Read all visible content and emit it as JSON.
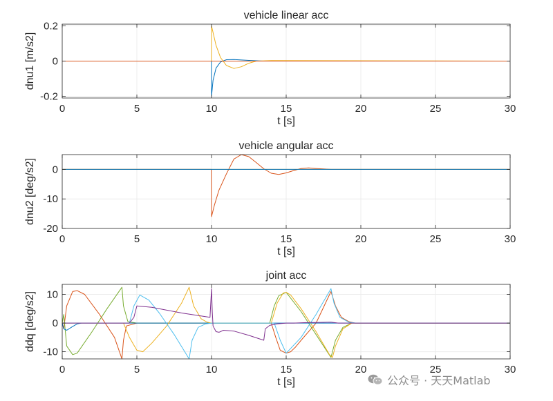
{
  "watermark": {
    "text": "公众号 · 天天Matlab",
    "icon": "wechat-icon"
  },
  "colors": [
    "#0072BD",
    "#D95319",
    "#EDB120",
    "#7E2F8E",
    "#77AC30",
    "#4DBEEE"
  ],
  "chart_data": [
    {
      "type": "line",
      "title": "vehicle linear acc",
      "xlabel": "t [s]",
      "ylabel": "dnu1 [m/s2]",
      "xlim": [
        0,
        30
      ],
      "ylim": [
        -0.21,
        0.21
      ],
      "xticks": [
        0,
        5,
        10,
        15,
        20,
        25,
        30
      ],
      "yticks": [
        -0.2,
        0,
        0.2
      ],
      "yticklabels": [
        "-0.2",
        "0",
        "0.2"
      ],
      "grid": true,
      "series": [
        {
          "color": "#0072BD",
          "x": [
            0,
            9.99,
            10.0,
            10.1,
            10.3,
            10.6,
            11.0,
            11.5,
            12.5,
            13.5,
            30
          ],
          "y": [
            0,
            0,
            -0.2,
            -0.11,
            -0.04,
            -0.005,
            0.008,
            0.009,
            0.004,
            0.0,
            0
          ]
        },
        {
          "color": "#EDB120",
          "x": [
            0,
            9.99,
            10.0,
            10.3,
            10.6,
            11.0,
            11.5,
            12.0,
            12.5,
            13.0,
            14.0,
            30
          ],
          "y": [
            0,
            0,
            0.2,
            0.09,
            0.02,
            -0.025,
            -0.042,
            -0.032,
            -0.012,
            0.0,
            0.003,
            0
          ]
        },
        {
          "color": "#D95319",
          "x": [
            0,
            30
          ],
          "y": [
            0,
            0
          ]
        }
      ]
    },
    {
      "type": "line",
      "title": "vehicle angular acc",
      "xlabel": "t [s]",
      "ylabel": "dnu2 [deg/s2]",
      "xlim": [
        0,
        30
      ],
      "ylim": [
        -20,
        5
      ],
      "xticks": [
        0,
        5,
        10,
        15,
        20,
        25,
        30
      ],
      "yticks": [
        -20,
        -10,
        0
      ],
      "yticklabels": [
        "-20",
        "-10",
        "0"
      ],
      "grid": true,
      "series": [
        {
          "color": "#D95319",
          "x": [
            0,
            9.98,
            10.0,
            10.2,
            10.5,
            11.0,
            11.5,
            12.0,
            12.5,
            13.0,
            13.5,
            14.0,
            14.5,
            15.0,
            15.5,
            16.0,
            16.5,
            17.0,
            18.0,
            20.0,
            30
          ],
          "y": [
            0,
            0,
            -16,
            -12,
            -7,
            -1.5,
            3.5,
            5,
            4.3,
            2.3,
            0.2,
            -1.3,
            -1.7,
            -1.2,
            -0.4,
            0.3,
            0.5,
            0.3,
            0.0,
            0,
            0
          ]
        },
        {
          "color": "#EDB120",
          "x": [
            0,
            30
          ],
          "y": [
            0,
            0
          ]
        },
        {
          "color": "#0072BD",
          "x": [
            0,
            30
          ],
          "y": [
            0,
            0
          ]
        }
      ]
    },
    {
      "type": "line",
      "title": "joint acc",
      "xlabel": "t [s]",
      "ylabel": "ddq [deg/s2]",
      "xlim": [
        0,
        30
      ],
      "ylim": [
        -12.5,
        13.5
      ],
      "xticks": [
        0,
        5,
        10,
        15,
        20,
        25,
        30
      ],
      "yticks": [
        -10,
        0,
        10
      ],
      "yticklabels": [
        "-10",
        "0",
        "10"
      ],
      "grid": true,
      "series": [
        {
          "color": "#D95319",
          "x": [
            0,
            0.1,
            0.3,
            0.7,
            1.0,
            1.5,
            2.5,
            3.5,
            4.0,
            4.1,
            4.3,
            5,
            14.0,
            14.3,
            14.6,
            15.0,
            15.3,
            15.6,
            16,
            17,
            18.0,
            18.3,
            18.7,
            19.2,
            19.6,
            30
          ],
          "y": [
            0,
            -2,
            6,
            11,
            11.3,
            10,
            3,
            -5,
            -12.5,
            -6,
            -1,
            0,
            0,
            -5,
            -9.5,
            -10.5,
            -10,
            -8.5,
            -6,
            0,
            11,
            6,
            2,
            0.5,
            0,
            0
          ]
        },
        {
          "color": "#77AC30",
          "x": [
            0,
            0.1,
            0.3,
            0.7,
            1.0,
            2.0,
            3.0,
            4.0,
            4.1,
            4.4,
            5,
            13.9,
            14.2,
            14.5,
            15.0,
            16.0,
            17.0,
            18.0,
            18.3,
            18.8,
            19.4,
            30
          ],
          "y": [
            0,
            3,
            -8,
            -11,
            -10.5,
            -3,
            5,
            12.5,
            6,
            0.5,
            0,
            0,
            6,
            9.5,
            10.7,
            4,
            -4,
            -12,
            -6,
            -1.5,
            0,
            0
          ]
        },
        {
          "color": "#0072BD",
          "x": [
            0,
            0.1,
            0.3,
            0.7,
            1.0,
            1.3,
            30
          ],
          "y": [
            0,
            -2,
            -2.5,
            -1.2,
            -0.3,
            0,
            0
          ]
        },
        {
          "color": "#EDB120",
          "x": [
            0,
            4.1,
            4.5,
            5.0,
            5.4,
            6.0,
            7.0,
            8.0,
            8.5,
            8.8,
            9.3,
            9.7,
            10.0,
            14.0,
            14.4,
            14.8,
            15.0,
            15.3,
            16,
            17,
            17.9,
            18.1,
            18.3,
            18.8,
            19.4,
            30
          ],
          "y": [
            0,
            0,
            -5,
            -9.5,
            -10,
            -7,
            -1,
            7,
            12.5,
            6,
            1.5,
            0.3,
            0,
            0,
            7,
            10.5,
            10.7,
            9.8,
            5,
            -3,
            -11,
            -12,
            -8,
            -2,
            0,
            0
          ]
        },
        {
          "color": "#4DBEEE",
          "x": [
            0,
            4.5,
            4.8,
            5.2,
            5.8,
            6.5,
            7.5,
            8.5,
            8.7,
            9.1,
            9.6,
            10.0,
            14.2,
            14.6,
            15.0,
            16,
            17,
            18.0,
            18.2,
            18.6,
            19.2,
            19.7,
            30
          ],
          "y": [
            0,
            0,
            6,
            9.8,
            8,
            3.5,
            -4,
            -12.5,
            -6,
            -1.5,
            -0.3,
            0,
            0,
            -6,
            -10.5,
            -5,
            3,
            12,
            7,
            2,
            0.3,
            0,
            0
          ]
        },
        {
          "color": "#7E2F8E",
          "x": [
            0,
            4.5,
            4.8,
            5.0,
            6.0,
            8.0,
            9.9,
            10.0,
            10.05,
            10.1,
            10.3,
            10.5,
            10.8,
            11.5,
            12.5,
            13.5,
            13.6,
            13.9,
            14.4,
            15.0,
            15.5,
            16.5,
            17.0,
            18.0,
            18.5,
            30
          ],
          "y": [
            0,
            0,
            2,
            6,
            5.5,
            3.5,
            2,
            12,
            4,
            -1,
            -3,
            -3.2,
            -2.5,
            -2.8,
            -4.3,
            -6,
            -2,
            -0.8,
            -0.3,
            0,
            0,
            0.2,
            0.2,
            0.3,
            0,
            0
          ]
        }
      ]
    }
  ]
}
